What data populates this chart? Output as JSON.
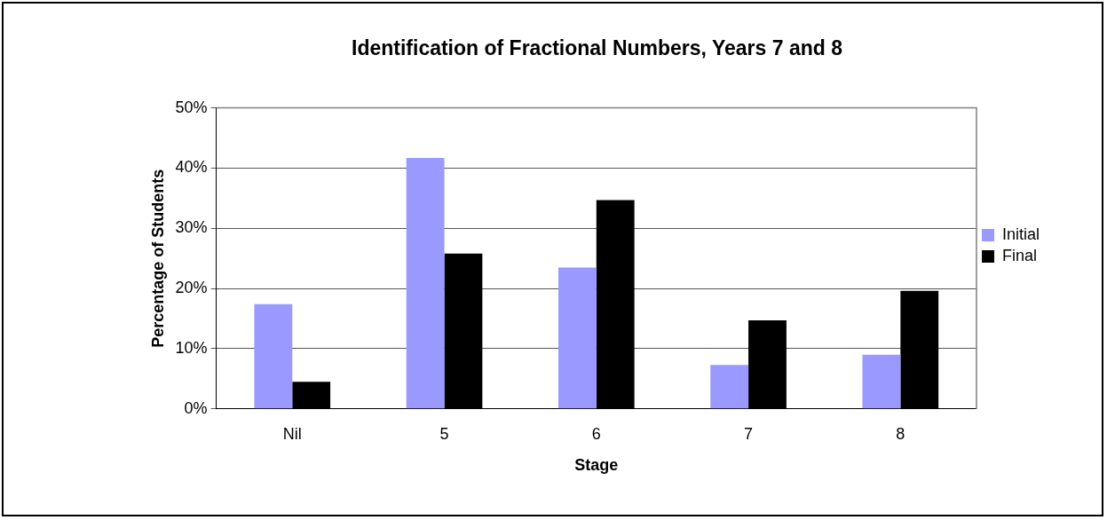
{
  "chart_data": {
    "type": "bar",
    "title": "Identification of Fractional Numbers, Years 7 and 8",
    "xlabel": "Stage",
    "ylabel": "Percentage of Students",
    "categories": [
      "Nil",
      "5",
      "6",
      "7",
      "8"
    ],
    "series": [
      {
        "name": "Initial",
        "color": "#9999ff",
        "values": [
          17.4,
          41.7,
          23.5,
          7.3,
          9.0
        ]
      },
      {
        "name": "Final",
        "color": "#000000",
        "values": [
          4.5,
          25.8,
          34.7,
          14.7,
          19.6
        ]
      }
    ],
    "ylim": [
      0,
      50
    ],
    "yticks": [
      {
        "value": 0,
        "label": "0%"
      },
      {
        "value": 10,
        "label": "10%"
      },
      {
        "value": 20,
        "label": "20%"
      },
      {
        "value": 30,
        "label": "30%"
      },
      {
        "value": 40,
        "label": "40%"
      },
      {
        "value": 50,
        "label": "50%"
      }
    ],
    "grid": "y",
    "legend": "right"
  }
}
